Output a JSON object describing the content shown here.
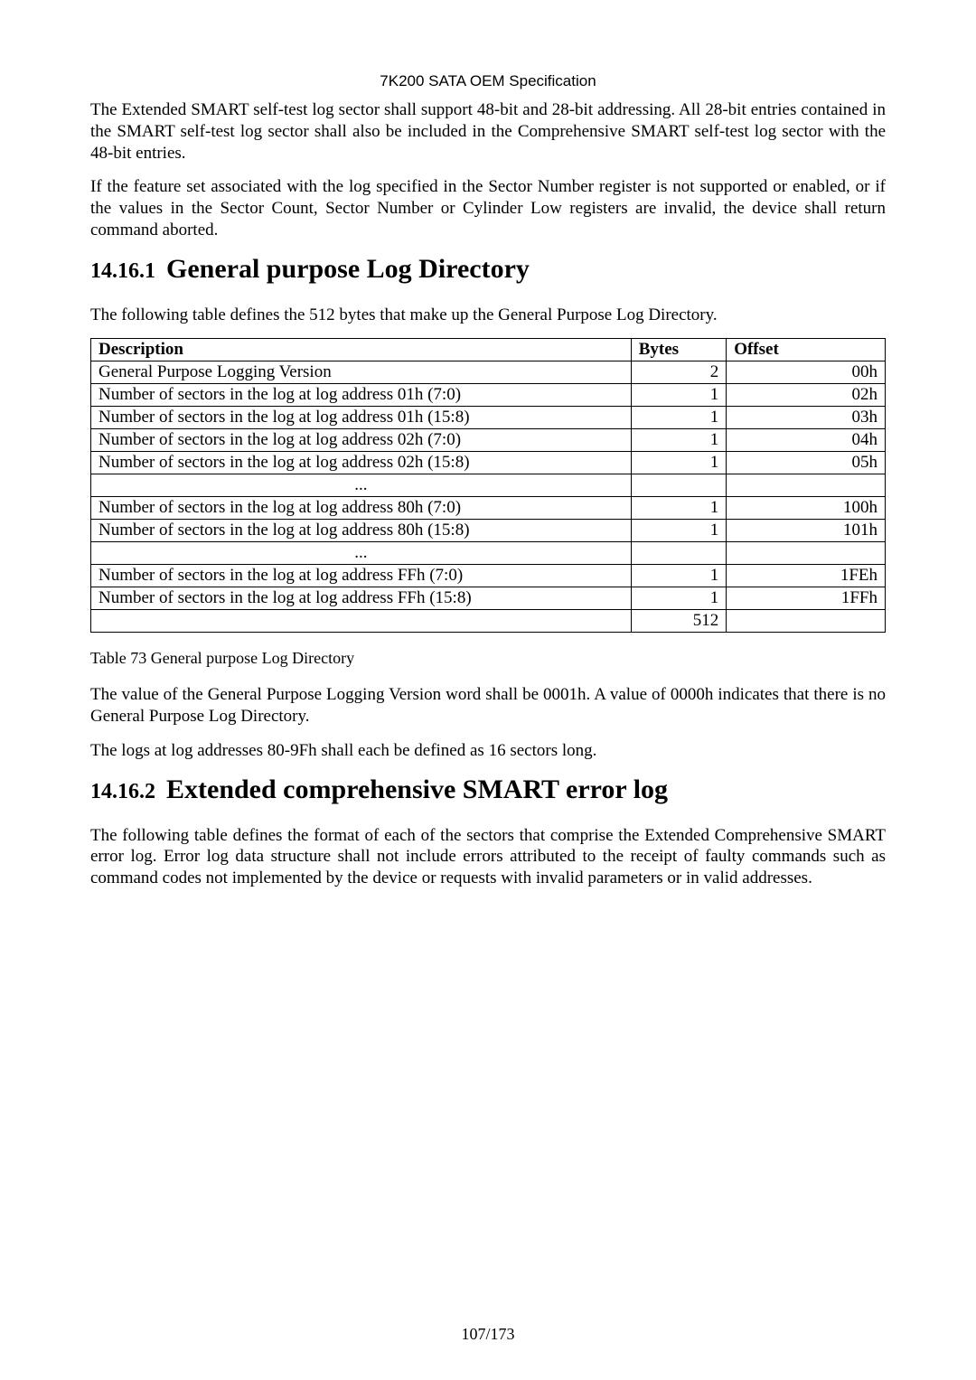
{
  "header": {
    "title": "7K200 SATA OEM Specification"
  },
  "paras": {
    "p1": "The Extended SMART self-test log sector shall support 48-bit and 28-bit addressing. All 28-bit entries contained in the SMART self-test log sector shall also be included in the Comprehensive SMART self-test log sector with the 48-bit entries.",
    "p2": "If the feature set associated with the log specified in the Sector Number register is not supported or enabled, or if the values in the Sector Count, Sector Number or Cylinder Low registers are invalid, the device shall return command aborted.",
    "p3": "The following table defines the 512 bytes that make up the General Purpose Log Directory.",
    "p4": "The value of the General Purpose Logging Version word shall be 0001h. A value of 0000h indicates that there is no General Purpose Log Directory.",
    "p5": "The logs at log addresses 80-9Fh shall each be defined as 16 sectors long.",
    "p6": "The following table defines the format of each of the sectors that comprise the Extended Comprehensive SMART error log. Error log data structure shall not include errors attributed to the receipt of faulty commands such as command codes not implemented by the device or requests with invalid parameters or in valid addresses."
  },
  "sections": {
    "s1": {
      "num": "14.16.1",
      "title": "General purpose Log Directory"
    },
    "s2": {
      "num": "14.16.2",
      "title": "Extended comprehensive SMART error log"
    }
  },
  "table": {
    "headers": {
      "c0": "Description",
      "c1": "Bytes",
      "c2": "Offset"
    },
    "rows": [
      {
        "desc": "General Purpose Logging Version",
        "bytes": "2",
        "offset": "00h"
      },
      {
        "desc": "Number of sectors in the log at log address 01h (7:0)",
        "bytes": "1",
        "offset": "02h"
      },
      {
        "desc": "Number of sectors in the log at log address 01h (15:8)",
        "bytes": "1",
        "offset": "03h"
      },
      {
        "desc": "Number of sectors in the log at log address 02h (7:0)",
        "bytes": "1",
        "offset": "04h"
      },
      {
        "desc": "Number of sectors in the log at log address 02h (15:8)",
        "bytes": "1",
        "offset": "05h"
      },
      {
        "desc": "...",
        "bytes": "",
        "offset": "",
        "ellipsis": true
      },
      {
        "desc": "Number of sectors in the log at log address 80h (7:0)",
        "bytes": "1",
        "offset": "100h"
      },
      {
        "desc": "Number of sectors in the log at log address 80h (15:8)",
        "bytes": "1",
        "offset": "101h"
      },
      {
        "desc": "...",
        "bytes": "",
        "offset": "",
        "ellipsis": true
      },
      {
        "desc": "Number of sectors in the log at log address FFh (7:0)",
        "bytes": "1",
        "offset": "1FEh"
      },
      {
        "desc": "Number of sectors in the log at log address FFh (15:8)",
        "bytes": "1",
        "offset": "1FFh"
      },
      {
        "desc": "",
        "bytes": "512",
        "offset": ""
      }
    ],
    "caption": "Table 73 General purpose Log Directory"
  },
  "footer": {
    "page": "107/173"
  },
  "style": {
    "page_bg": "#ffffff",
    "text_color": "#000000",
    "border_color": "#000000",
    "body_font": "Century Schoolbook / Times",
    "header_font": "Arial",
    "body_fontsize_pt": 14,
    "heading_title_fontsize_pt": 22,
    "heading_num_fontsize_pt": 18,
    "table_fontsize_pt": 14
  }
}
